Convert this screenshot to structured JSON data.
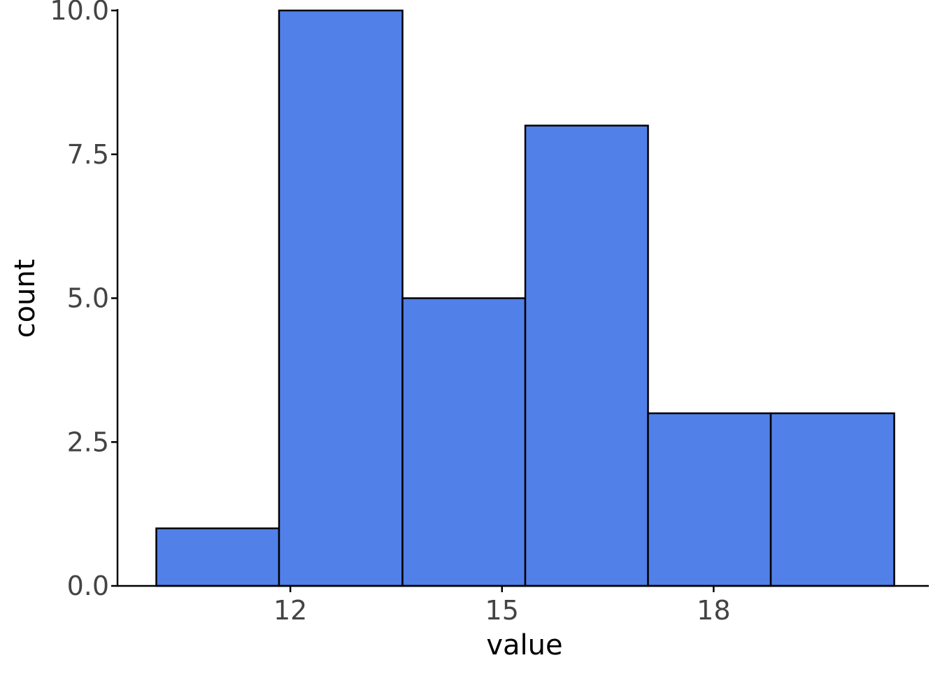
{
  "chart_data": {
    "type": "bar",
    "subtype": "histogram",
    "title": "",
    "xlabel": "value",
    "ylabel": "count",
    "xlim": [
      9.55,
      21.05
    ],
    "ylim": [
      0,
      10
    ],
    "x_ticks": [
      12,
      15,
      18
    ],
    "y_ticks": [
      0,
      2.5,
      5,
      7.5,
      10
    ],
    "y_tick_labels": [
      "0.0",
      "2.5",
      "5.0",
      "7.5",
      "10.0"
    ],
    "bins": [
      {
        "x0": 10.1,
        "x1": 11.84,
        "count": 1
      },
      {
        "x0": 11.84,
        "x1": 13.59,
        "count": 10
      },
      {
        "x0": 13.59,
        "x1": 15.33,
        "count": 5
      },
      {
        "x0": 15.33,
        "x1": 17.07,
        "count": 8
      },
      {
        "x0": 17.07,
        "x1": 18.81,
        "count": 3
      },
      {
        "x0": 18.81,
        "x1": 20.56,
        "count": 3
      }
    ],
    "grid": false,
    "legend": "none",
    "colors": {
      "bar_fill": "#5280E9",
      "bar_stroke": "#000000",
      "axis": "#000000",
      "tick_text": "#444444"
    }
  }
}
